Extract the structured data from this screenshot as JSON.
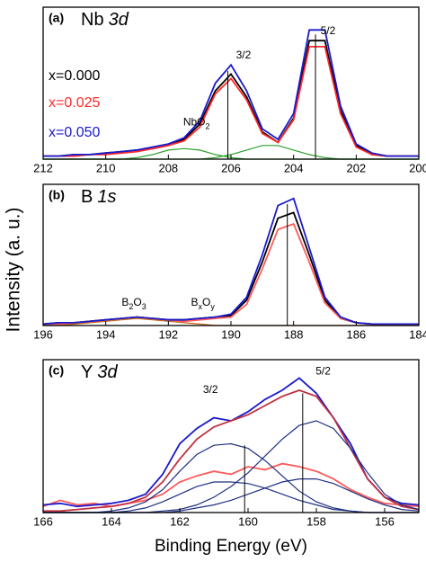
{
  "chart_data": [
    {
      "type": "line",
      "panel_label": "(a)",
      "title": {
        "text": "Nb",
        "italic": "3d"
      },
      "ylabel": "Intensity (a. u.)",
      "xlim": [
        212,
        200
      ],
      "xticks": [
        212,
        210,
        208,
        206,
        204,
        202,
        200
      ],
      "ylim": [
        0,
        1
      ],
      "legend": "left",
      "x": [
        212,
        211.5,
        211,
        210.5,
        210,
        209.5,
        209,
        208.5,
        208,
        207.5,
        207,
        206.5,
        206,
        205.5,
        205,
        204.5,
        204,
        203.5,
        203,
        202.5,
        202,
        201.5,
        201,
        200.5,
        200
      ],
      "series": [
        {
          "name": "x=0.000",
          "color": "#000000",
          "values": [
            0.02,
            0.02,
            0.03,
            0.03,
            0.04,
            0.05,
            0.06,
            0.07,
            0.09,
            0.13,
            0.23,
            0.45,
            0.56,
            0.41,
            0.18,
            0.11,
            0.27,
            0.78,
            0.78,
            0.32,
            0.09,
            0.03,
            0.02,
            0.02,
            0.02
          ]
        },
        {
          "name": "x=0.025",
          "color": "#ff2a2a",
          "values": [
            0.02,
            0.02,
            0.02,
            0.03,
            0.03,
            0.04,
            0.05,
            0.07,
            0.09,
            0.12,
            0.21,
            0.43,
            0.53,
            0.39,
            0.17,
            0.11,
            0.26,
            0.74,
            0.74,
            0.3,
            0.08,
            0.03,
            0.02,
            0.02,
            0.02
          ]
        },
        {
          "name": "x=0.050",
          "color": "#1a1acc",
          "values": [
            0.02,
            0.02,
            0.03,
            0.03,
            0.04,
            0.05,
            0.06,
            0.08,
            0.1,
            0.14,
            0.25,
            0.5,
            0.62,
            0.45,
            0.2,
            0.13,
            0.3,
            0.85,
            0.85,
            0.35,
            0.1,
            0.04,
            0.02,
            0.02,
            0.02
          ]
        },
        {
          "color": "#2ca02c",
          "values": [
            0,
            0,
            0,
            0,
            0,
            0,
            0.01,
            0.03,
            0.06,
            0.07,
            0.06,
            0.03,
            0.01,
            0,
            0,
            0,
            0,
            0,
            0,
            0,
            0,
            0,
            0,
            0,
            0
          ]
        },
        {
          "color": "#2ca02c",
          "values": [
            0,
            0,
            0,
            0,
            0,
            0,
            0,
            0,
            0,
            0,
            0,
            0.01,
            0.03,
            0.06,
            0.09,
            0.09,
            0.06,
            0.03,
            0.01,
            0,
            0,
            0,
            0,
            0,
            0
          ]
        }
      ],
      "peak_lines": [
        {
          "x": 206.1,
          "y": 0.58
        },
        {
          "x": 203.3,
          "y": 0.82
        }
      ],
      "annotations": [
        {
          "x": 205.6,
          "y": 0.68,
          "parts": [
            {
              "t": "3/2"
            }
          ]
        },
        {
          "x": 202.9,
          "y": 0.84,
          "parts": [
            {
              "t": "5/2"
            }
          ]
        },
        {
          "x": 207.1,
          "y": 0.24,
          "parts": [
            {
              "t": "NbO"
            },
            {
              "t": "2",
              "sub": true
            }
          ]
        }
      ]
    },
    {
      "type": "line",
      "panel_label": "(b)",
      "title": {
        "text": "B",
        "italic": "1s"
      },
      "xlim": [
        196,
        184
      ],
      "xticks": [
        196,
        194,
        192,
        190,
        188,
        186,
        184
      ],
      "ylim": [
        0,
        1
      ],
      "x": [
        196,
        195.5,
        195,
        194.5,
        194,
        193.5,
        193,
        192.5,
        192,
        191.5,
        191,
        190.5,
        190,
        189.5,
        189,
        188.5,
        188,
        187.5,
        187,
        186.5,
        186,
        185.5,
        185,
        184.5,
        184
      ],
      "series": [
        {
          "color": "#000000",
          "values": [
            0.01,
            0.02,
            0.02,
            0.03,
            0.04,
            0.05,
            0.06,
            0.05,
            0.04,
            0.04,
            0.05,
            0.06,
            0.07,
            0.18,
            0.45,
            0.76,
            0.8,
            0.5,
            0.18,
            0.05,
            0.02,
            0.01,
            0.01,
            0.01,
            0.01
          ]
        },
        {
          "color": "#ff5a5a",
          "values": [
            0.01,
            0.01,
            0.02,
            0.03,
            0.04,
            0.05,
            0.06,
            0.05,
            0.04,
            0.03,
            0.04,
            0.05,
            0.06,
            0.15,
            0.4,
            0.68,
            0.72,
            0.45,
            0.16,
            0.05,
            0.02,
            0.01,
            0.01,
            0.01,
            0.01
          ]
        },
        {
          "color": "#1a1acc",
          "values": [
            0.01,
            0.02,
            0.02,
            0.03,
            0.04,
            0.05,
            0.06,
            0.05,
            0.04,
            0.04,
            0.05,
            0.06,
            0.08,
            0.2,
            0.5,
            0.85,
            0.9,
            0.55,
            0.2,
            0.06,
            0.02,
            0.01,
            0.01,
            0.01,
            0.01
          ]
        },
        {
          "color": "#c86414",
          "values": [
            0,
            0,
            0.01,
            0.02,
            0.03,
            0.04,
            0.05,
            0.04,
            0.03,
            0.02,
            0.01,
            0,
            0,
            0,
            0,
            0,
            0,
            0,
            0,
            0,
            0,
            0,
            0,
            0,
            0
          ]
        }
      ],
      "peak_lines": [
        {
          "x": 188.2,
          "y": 0.86
        }
      ],
      "annotations": [
        {
          "x": 193.1,
          "y": 0.16,
          "parts": [
            {
              "t": "B"
            },
            {
              "t": "2",
              "sub": true
            },
            {
              "t": "O"
            },
            {
              "t": "3",
              "sub": true
            }
          ]
        },
        {
          "x": 190.9,
          "y": 0.16,
          "parts": [
            {
              "t": "B"
            },
            {
              "t": "x",
              "sub": true
            },
            {
              "t": "O"
            },
            {
              "t": "y",
              "sub": true
            }
          ]
        }
      ]
    },
    {
      "type": "line",
      "panel_label": "(c)",
      "title": {
        "text": "Y",
        "italic": "3d"
      },
      "xlabel": "Binding Energy (eV)",
      "xlim": [
        166,
        155
      ],
      "xticks": [
        166,
        164,
        162,
        160,
        158,
        156
      ],
      "ylim": [
        0,
        1
      ],
      "x": [
        166,
        165.5,
        165,
        164.5,
        164,
        163.5,
        163,
        162.5,
        162,
        161.5,
        161,
        160.5,
        160,
        159.5,
        159,
        158.5,
        158,
        157.5,
        157,
        156.5,
        156,
        155.5,
        155
      ],
      "series": [
        {
          "color": "#ff5a5a",
          "values": [
            0.04,
            0.08,
            0.05,
            0.06,
            0.04,
            0.06,
            0.08,
            0.12,
            0.2,
            0.24,
            0.27,
            0.25,
            0.3,
            0.28,
            0.32,
            0.3,
            0.27,
            0.22,
            0.15,
            0.1,
            0.06,
            0.05,
            0.04
          ]
        },
        {
          "color": "#1a1acc",
          "values": [
            0.05,
            0.06,
            0.04,
            0.05,
            0.06,
            0.08,
            0.12,
            0.25,
            0.45,
            0.55,
            0.62,
            0.6,
            0.66,
            0.74,
            0.8,
            0.88,
            0.78,
            0.62,
            0.45,
            0.22,
            0.1,
            0.06,
            0.05
          ]
        },
        {
          "color": "#c03040",
          "values": [
            0.01,
            0.01,
            0.02,
            0.03,
            0.04,
            0.06,
            0.1,
            0.2,
            0.35,
            0.48,
            0.56,
            0.6,
            0.64,
            0.7,
            0.76,
            0.8,
            0.76,
            0.62,
            0.42,
            0.22,
            0.1,
            0.04,
            0.02
          ]
        },
        {
          "color": "#1f2f80",
          "values": [
            0,
            0,
            0,
            0,
            0.01,
            0.03,
            0.07,
            0.15,
            0.27,
            0.38,
            0.44,
            0.45,
            0.42,
            0.34,
            0.24,
            0.14,
            0.07,
            0.03,
            0.01,
            0,
            0,
            0,
            0
          ]
        },
        {
          "color": "#1f2f80",
          "values": [
            0,
            0,
            0,
            0,
            0,
            0,
            0,
            0.01,
            0.02,
            0.05,
            0.1,
            0.17,
            0.26,
            0.37,
            0.48,
            0.57,
            0.6,
            0.55,
            0.42,
            0.26,
            0.12,
            0.05,
            0.02
          ]
        },
        {
          "color": "#1f2f80",
          "values": [
            0,
            0,
            0,
            0,
            0,
            0.01,
            0.03,
            0.07,
            0.12,
            0.17,
            0.2,
            0.2,
            0.19,
            0.16,
            0.12,
            0.08,
            0.05,
            0.02,
            0.01,
            0,
            0,
            0,
            0
          ]
        },
        {
          "color": "#1f2f80",
          "values": [
            0,
            0,
            0,
            0,
            0,
            0,
            0,
            0,
            0.01,
            0.03,
            0.05,
            0.08,
            0.12,
            0.16,
            0.2,
            0.22,
            0.22,
            0.19,
            0.14,
            0.09,
            0.05,
            0.02,
            0.01
          ]
        }
      ],
      "peak_lines": [
        {
          "x": 160.1,
          "y": 0.44
        },
        {
          "x": 158.4,
          "y": 0.78
        }
      ],
      "annotations": [
        {
          "x": 161.1,
          "y": 0.8,
          "parts": [
            {
              "t": "3/2"
            }
          ]
        },
        {
          "x": 157.8,
          "y": 0.92,
          "parts": [
            {
              "t": "5/2"
            }
          ]
        }
      ]
    }
  ]
}
